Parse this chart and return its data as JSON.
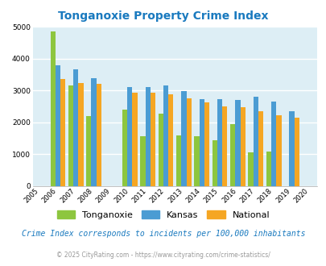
{
  "title": "Tonganoxie Property Crime Index",
  "years": [
    2005,
    2006,
    2007,
    2008,
    2009,
    2010,
    2011,
    2012,
    2013,
    2014,
    2015,
    2016,
    2017,
    2018,
    2019,
    2020
  ],
  "tonganoxie": [
    null,
    4850,
    3150,
    2200,
    null,
    2400,
    1560,
    2280,
    1600,
    1560,
    1440,
    1950,
    1070,
    1080,
    null,
    null
  ],
  "kansas": [
    null,
    3780,
    3650,
    3380,
    null,
    3110,
    3100,
    3150,
    2980,
    2720,
    2730,
    2700,
    2810,
    2640,
    2340,
    null
  ],
  "national": [
    null,
    3360,
    3240,
    3200,
    null,
    2940,
    2920,
    2880,
    2740,
    2620,
    2500,
    2470,
    2360,
    2210,
    2140,
    null
  ],
  "tonganoxie_color": "#8dc63f",
  "kansas_color": "#4b9cd3",
  "national_color": "#f5a623",
  "bg_color": "#ddeef5",
  "ylim": [
    0,
    5000
  ],
  "yticks": [
    0,
    1000,
    2000,
    3000,
    4000,
    5000
  ],
  "subtitle": "Crime Index corresponds to incidents per 100,000 inhabitants",
  "footer": "© 2025 CityRating.com - https://www.cityrating.com/crime-statistics/",
  "title_color": "#1a7abf",
  "subtitle_color": "#1a7abf",
  "footer_color": "#999999"
}
